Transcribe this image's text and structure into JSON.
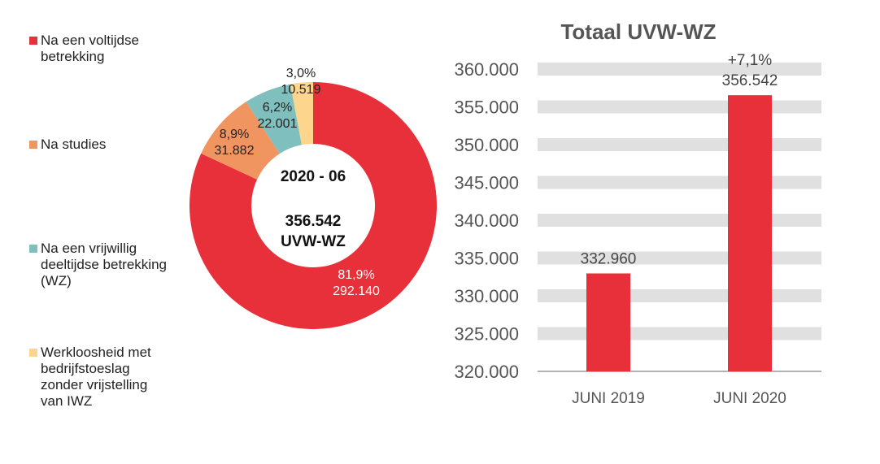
{
  "chart_data": [
    {
      "type": "pie",
      "variant": "donut",
      "center_label_period": "2020 - 06",
      "center_label_total": "356.542",
      "center_label_unit": "UVW-WZ",
      "legend_placement": "left",
      "slices": [
        {
          "name": "Na een voltijdse\nbetrekking",
          "percent_label": "81,9%",
          "value_label": "292.140",
          "value": 292140,
          "color": "#E8303A"
        },
        {
          "name": "Na studies",
          "percent_label": "8,9%",
          "value_label": "31.882",
          "value": 31882,
          "color": "#F0955F"
        },
        {
          "name": "Na een vrijwillig\ndeeltijdse betrekking\n(WZ)",
          "percent_label": "6,2%",
          "value_label": "22.001",
          "value": 22001,
          "color": "#7FBFBD"
        },
        {
          "name": "Werkloosheid met\nbedrijfstoeslag\nzonder vrijstelling\nvan IWZ",
          "percent_label": "3,0%",
          "value_label": "10.519",
          "value": 10519,
          "color": "#FDD58C"
        }
      ]
    },
    {
      "type": "bar",
      "title": "Totaal UVW-WZ",
      "categories": [
        "JUNI 2019",
        "JUNI 2020"
      ],
      "values": [
        332960,
        356542
      ],
      "data_labels": [
        "332.960",
        "356.542"
      ],
      "change_label": "+7,1%",
      "ylim": [
        320000,
        360000
      ],
      "yticks": [
        "320.000",
        "325.000",
        "330.000",
        "335.000",
        "340.000",
        "345.000",
        "350.000",
        "355.000",
        "360.000"
      ],
      "grid": true,
      "bar_color": "#E8303A",
      "grid_color": "#E0E0E0"
    }
  ]
}
